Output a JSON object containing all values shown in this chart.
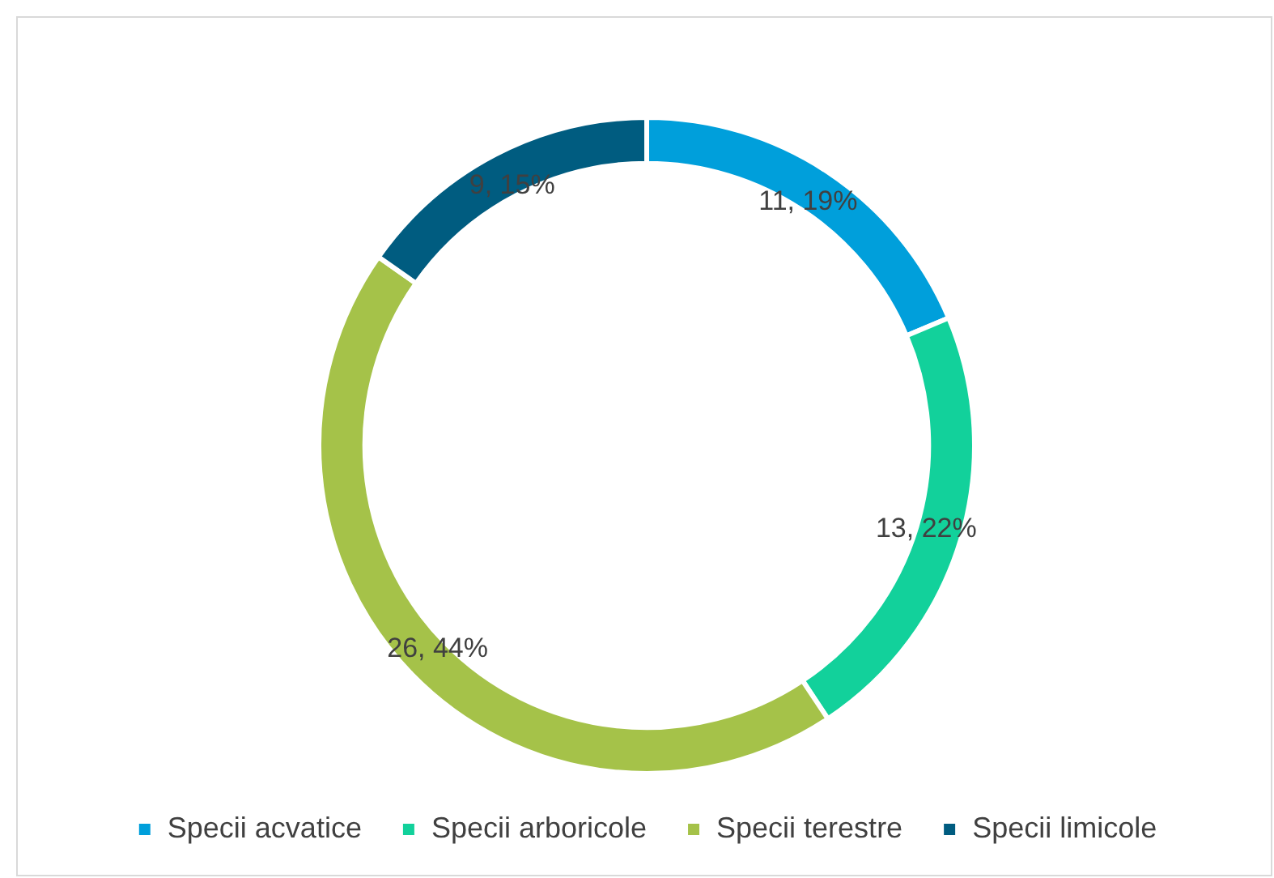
{
  "chart_data": {
    "type": "donut",
    "categories": [
      "Specii acvatice",
      "Specii arboricole",
      "Specii terestre",
      "Specii limicole"
    ],
    "values": [
      11,
      13,
      26,
      9
    ],
    "colors": [
      "#009fdb",
      "#12d19b",
      "#a5c249",
      "#005c80"
    ],
    "value_labels": [
      "11, 19%",
      "13, 22%",
      "26, 44%",
      "9, 15%"
    ],
    "legend": "bottom"
  }
}
